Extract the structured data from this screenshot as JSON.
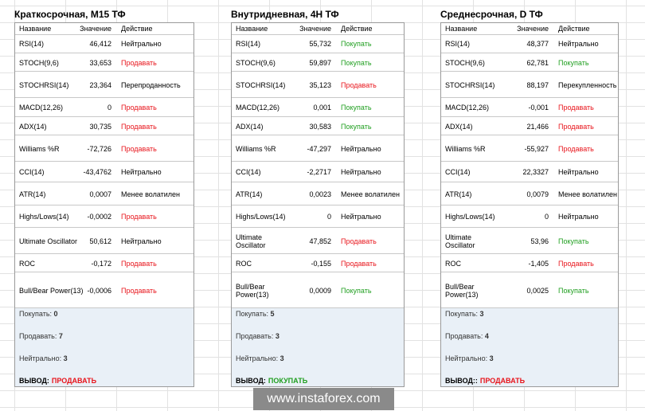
{
  "header": {
    "name": "Название",
    "value": "Значение",
    "action": "Действие"
  },
  "panels": [
    {
      "title": "Краткосрочная, M15 ТФ",
      "rows": [
        {
          "name": "RSI(14)",
          "value": "46,412",
          "action": "Нейтрально",
          "color": "#000000"
        },
        {
          "name": "STOCH(9,6)",
          "value": "33,653",
          "action": "Продавать",
          "color": "#e8141b"
        },
        {
          "name": "STOCHRSI(14)",
          "value": "23,364",
          "action": "Перепроданность",
          "color": "#000000"
        },
        {
          "name": "MACD(12,26)",
          "value": "0",
          "action": "Продавать",
          "color": "#e8141b"
        },
        {
          "name": "ADX(14)",
          "value": "30,735",
          "action": "Продавать",
          "color": "#e8141b"
        },
        {
          "name": "Williams %R",
          "value": "-72,726",
          "action": "Продавать",
          "color": "#e8141b"
        },
        {
          "name": "CCI(14)",
          "value": "-43,4762",
          "action": "Нейтрально",
          "color": "#000000"
        },
        {
          "name": "ATR(14)",
          "value": "0,0007",
          "action": "Менее волатилен",
          "color": "#000000"
        },
        {
          "name": "Highs/Lows(14)",
          "value": "-0,0002",
          "action": "Продавать",
          "color": "#e8141b"
        },
        {
          "name": "Ultimate Oscillator",
          "value": "50,612",
          "action": "Нейтрально",
          "color": "#000000"
        },
        {
          "name": "ROC",
          "value": "-0,172",
          "action": "Продавать",
          "color": "#e8141b"
        },
        {
          "name": "Bull/Bear Power(13)",
          "value": "-0,0006",
          "action": "Продавать",
          "color": "#e8141b"
        }
      ],
      "summary": [
        {
          "label": "Покупать:",
          "count": 0
        },
        {
          "label": "Продавать:",
          "count": 7
        },
        {
          "label": "Нейтрально:",
          "count": 3
        }
      ],
      "conclusion": {
        "label": "ВЫВОД:",
        "value": "ПРОДАВАТЬ",
        "color": "#e8141b"
      }
    },
    {
      "title": "Внутридневная, 4H ТФ",
      "rows": [
        {
          "name": "RSI(14)",
          "value": "55,732",
          "action": "Покупать",
          "color": "#1f9e1f"
        },
        {
          "name": "STOCH(9,6)",
          "value": "59,897",
          "action": "Покупать",
          "color": "#1f9e1f"
        },
        {
          "name": "STOCHRSI(14)",
          "value": "35,123",
          "action": "Продавать",
          "color": "#e8141b"
        },
        {
          "name": "MACD(12,26)",
          "value": "0,001",
          "action": "Покупать",
          "color": "#1f9e1f"
        },
        {
          "name": "ADX(14)",
          "value": "30,583",
          "action": "Покупать",
          "color": "#1f9e1f"
        },
        {
          "name": "Williams %R",
          "value": "-47,297",
          "action": "Нейтрально",
          "color": "#000000"
        },
        {
          "name": "CCI(14)",
          "value": "-2,2717",
          "action": "Нейтрально",
          "color": "#000000"
        },
        {
          "name": "ATR(14)",
          "value": "0,0023",
          "action": "Менее волатилен",
          "color": "#000000"
        },
        {
          "name": "Highs/Lows(14)",
          "value": "0",
          "action": "Нейтрально",
          "color": "#000000"
        },
        {
          "name": "Ultimate Oscillator",
          "value": "47,852",
          "action": "Продавать",
          "color": "#e8141b"
        },
        {
          "name": "ROC",
          "value": "-0,155",
          "action": "Продавать",
          "color": "#e8141b"
        },
        {
          "name": "Bull/Bear Power(13)",
          "value": "0,0009",
          "action": "Покупать",
          "color": "#1f9e1f"
        }
      ],
      "summary": [
        {
          "label": "Покупать:",
          "count": 5
        },
        {
          "label": "Продавать:",
          "count": 3
        },
        {
          "label": "Нейтрально:",
          "count": 3
        }
      ],
      "conclusion": {
        "label": "ВЫВОД:",
        "value": "ПОКУПАТЬ",
        "color": "#1f9e1f"
      }
    },
    {
      "title": "Среднесрочная, D ТФ",
      "rows": [
        {
          "name": "RSI(14)",
          "value": "48,377",
          "action": "Нейтрально",
          "color": "#000000"
        },
        {
          "name": "STOCH(9,6)",
          "value": "62,781",
          "action": "Покупать",
          "color": "#1f9e1f"
        },
        {
          "name": "STOCHRSI(14)",
          "value": "88,197",
          "action": "Перекупленность",
          "color": "#000000"
        },
        {
          "name": "MACD(12,26)",
          "value": "-0,001",
          "action": "Продавать",
          "color": "#e8141b"
        },
        {
          "name": "ADX(14)",
          "value": "21,466",
          "action": "Продавать",
          "color": "#e8141b"
        },
        {
          "name": "Williams %R",
          "value": "-55,927",
          "action": "Продавать",
          "color": "#e8141b"
        },
        {
          "name": "CCI(14)",
          "value": "22,3327",
          "action": "Нейтрально",
          "color": "#000000"
        },
        {
          "name": "ATR(14)",
          "value": "0,0079",
          "action": "Менее волатилен",
          "color": "#000000"
        },
        {
          "name": "Highs/Lows(14)",
          "value": "0",
          "action": "Нейтрально",
          "color": "#000000"
        },
        {
          "name": "Ultimate Oscillator",
          "value": "53,96",
          "action": "Покупать",
          "color": "#1f9e1f"
        },
        {
          "name": "ROC",
          "value": "-1,405",
          "action": "Продавать",
          "color": "#e8141b"
        },
        {
          "name": "Bull/Bear Power(13)",
          "value": "0,0025",
          "action": "Покупать",
          "color": "#1f9e1f"
        }
      ],
      "summary": [
        {
          "label": "Покупать:",
          "count": 3
        },
        {
          "label": "Продавать:",
          "count": 4
        },
        {
          "label": "Нейтрально:",
          "count": 3
        }
      ],
      "conclusion": {
        "label": "ВЫВОД::",
        "value": "ПРОДАВАТЬ",
        "color": "#e8141b"
      }
    }
  ],
  "watermark": "www.instaforex.com"
}
